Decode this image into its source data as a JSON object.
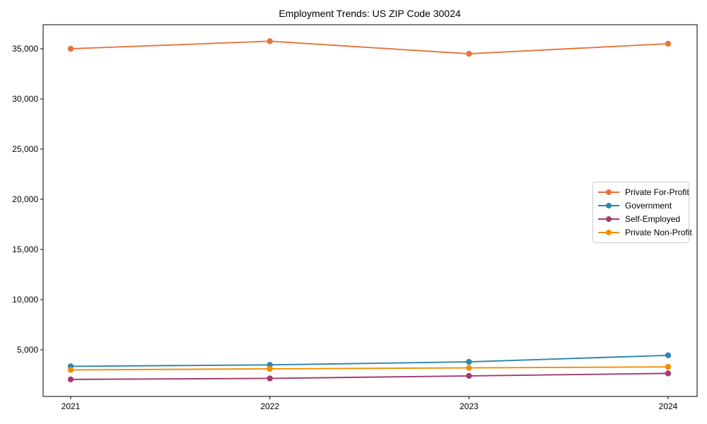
{
  "title": "Employment Trends: US ZIP Code 30024",
  "chart_data": {
    "type": "line",
    "title": "Employment Trends: US ZIP Code 30024",
    "xlabel": "",
    "ylabel": "",
    "categories": [
      "2021",
      "2022",
      "2023",
      "2024"
    ],
    "series": [
      {
        "name": "Private For-Profit",
        "color": "#E8743B",
        "values": [
          35000,
          35750,
          34500,
          35500
        ]
      },
      {
        "name": "Government",
        "color": "#2E86AB",
        "values": [
          3350,
          3500,
          3800,
          4450
        ]
      },
      {
        "name": "Self-Employed",
        "color": "#A23B72",
        "values": [
          2050,
          2150,
          2400,
          2650
        ]
      },
      {
        "name": "Private Non-Profit",
        "color": "#F18F01",
        "values": [
          3000,
          3100,
          3200,
          3300
        ]
      }
    ],
    "yticks": [
      5000,
      10000,
      15000,
      20000,
      25000,
      30000,
      35000
    ],
    "ytick_labels": [
      "5,000",
      "10,000",
      "15,000",
      "20,000",
      "25,000",
      "30,000",
      "35,000"
    ],
    "ylim": [
      300,
      37500
    ],
    "grid": false,
    "marker": "circle",
    "legend_position": "center-right"
  }
}
